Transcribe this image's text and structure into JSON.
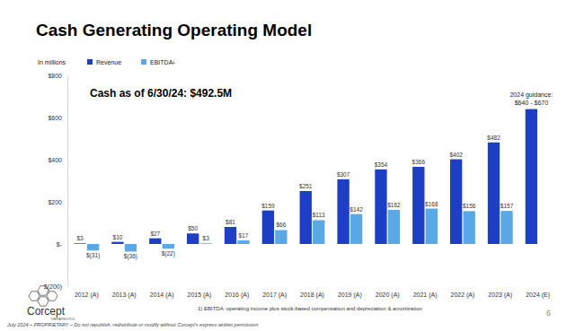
{
  "chart_data": {
    "type": "bar",
    "title": "Cash Generating Operating Model",
    "y_label": "In millions",
    "categories": [
      "2012 (A)",
      "2013 (A)",
      "2014 (A)",
      "2015 (A)",
      "2016 (A)",
      "2017 (A)",
      "2018 (A)",
      "2019 (A)",
      "2020 (A)",
      "2021 (A)",
      "2022 (A)",
      "2023 (A)",
      "2024 (E)"
    ],
    "series": [
      {
        "name": "Revenue",
        "color": "#1c3fc4",
        "values": [
          3,
          10,
          27,
          50,
          81,
          159,
          251,
          307,
          354,
          366,
          402,
          482,
          640
        ],
        "value_labels": [
          "$3",
          "$10",
          "$27",
          "$50",
          "$81",
          "$159",
          "$251",
          "$307",
          "$354",
          "$366",
          "$402",
          "$482",
          null
        ]
      },
      {
        "name": "EBITDA¹",
        "color": "#5aa8e6",
        "values": [
          -31,
          -36,
          -22,
          3,
          17,
          66,
          113,
          142,
          162,
          168,
          156,
          157,
          null
        ],
        "value_labels": [
          "$(31)",
          "$(36)",
          "$(22)",
          "$3",
          "$17",
          "$66",
          "$113",
          "$142",
          "$162",
          "$168",
          "$156",
          "$157",
          null
        ]
      }
    ],
    "ylim": [
      -200,
      800
    ],
    "yticks": [
      {
        "value": -200,
        "label": "$(200)"
      },
      {
        "value": 0,
        "label": "$-"
      },
      {
        "value": 200,
        "label": "$200"
      },
      {
        "value": 400,
        "label": "$400"
      },
      {
        "value": 600,
        "label": "$600"
      },
      {
        "value": 800,
        "label": "$800"
      }
    ],
    "grid": false,
    "legend": "top-left",
    "data_labels": true,
    "annotations": [
      "Cash as of 6/30/24: $492.5M",
      "2024 guidance:",
      "$640 - $670"
    ]
  },
  "page": {
    "footnote": "1) EBITDA: operating income plus stock-based compensation and depreciation & amortization",
    "footer": "July 2024 – PROPRIETARY – Do not republish, redistribute or modify without Corcept’s express written permission",
    "page_number": "6",
    "logo": "Corcept",
    "logo_sub": "THERAPEUTICS"
  }
}
